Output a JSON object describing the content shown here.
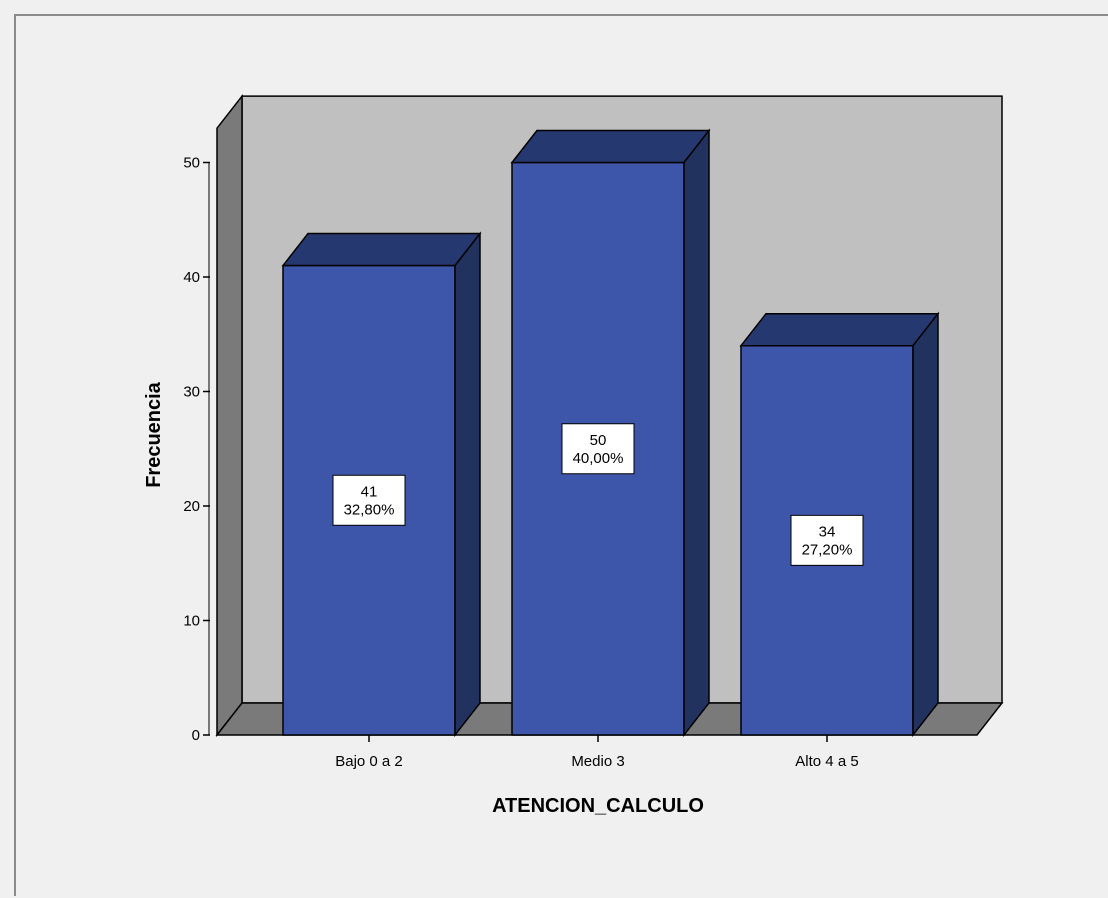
{
  "chart_data": {
    "type": "bar",
    "xlabel": "ATENCION_CALCULO",
    "ylabel": "Frecuencia",
    "categories": [
      "Bajo 0 a 2",
      "Medio 3",
      "Alto 4 a 5"
    ],
    "values": [
      41,
      50,
      34
    ],
    "percent_labels": [
      "32,80%",
      "40,00%",
      "27,20%"
    ],
    "ylim": [
      0,
      53
    ],
    "yticks": [
      0,
      10,
      20,
      30,
      40,
      50
    ],
    "grid": false,
    "three_d": true,
    "colors": {
      "bar_front": "#3d56a9",
      "bar_top": "#263870",
      "bar_side": "#22325f",
      "back_wall": "#c0c0c0",
      "side_wall": "#7a7a7a",
      "floor": "#7a7a7a",
      "background": "#f0f0f0"
    }
  }
}
